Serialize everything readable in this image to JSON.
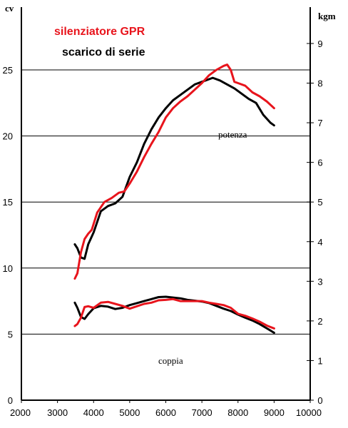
{
  "chart_data": {
    "type": "line",
    "title": "",
    "x": {
      "range": [
        2000,
        10000
      ],
      "ticks": [
        "2000",
        "3000",
        "4000",
        "5000",
        "6000",
        "7000",
        "8000",
        "9000",
        "10000"
      ]
    },
    "y_left": {
      "unit": "cv",
      "range": [
        0,
        30
      ],
      "ticks": [
        "0",
        "5",
        "10",
        "15",
        "20",
        "25"
      ]
    },
    "y_right": {
      "unit": "kgm",
      "range": [
        0,
        10
      ],
      "ticks": [
        "0",
        "1",
        "2",
        "3",
        "4",
        "5",
        "6",
        "7",
        "8",
        "9"
      ]
    },
    "legend": {
      "placement": "top-left",
      "entries": [
        {
          "label": "silenziatore GPR",
          "color": "#e8141c"
        },
        {
          "label": "scarico di serie",
          "color": "#000000"
        }
      ]
    },
    "annotations": {
      "power": "potenza",
      "torque": "coppia"
    },
    "grid": "horizontal at left-axis ticks",
    "series": [
      {
        "name": "silenziatore GPR",
        "quantity": "potenza",
        "axis": "left",
        "color": "#e8141c",
        "points": [
          [
            3480,
            9.2
          ],
          [
            3550,
            9.6
          ],
          [
            3650,
            11.2
          ],
          [
            3750,
            12.2
          ],
          [
            3850,
            12.6
          ],
          [
            3950,
            12.9
          ],
          [
            4100,
            14.2
          ],
          [
            4300,
            15.0
          ],
          [
            4500,
            15.3
          ],
          [
            4700,
            15.7
          ],
          [
            4850,
            15.8
          ],
          [
            5000,
            16.4
          ],
          [
            5200,
            17.3
          ],
          [
            5400,
            18.4
          ],
          [
            5600,
            19.4
          ],
          [
            5800,
            20.3
          ],
          [
            6000,
            21.4
          ],
          [
            6200,
            22.1
          ],
          [
            6400,
            22.6
          ],
          [
            6600,
            23.0
          ],
          [
            6800,
            23.5
          ],
          [
            7000,
            24.0
          ],
          [
            7200,
            24.6
          ],
          [
            7400,
            25.0
          ],
          [
            7600,
            25.3
          ],
          [
            7700,
            25.4
          ],
          [
            7800,
            25.0
          ],
          [
            7900,
            24.1
          ],
          [
            8000,
            24.0
          ],
          [
            8200,
            23.8
          ],
          [
            8400,
            23.3
          ],
          [
            8600,
            23.0
          ],
          [
            8800,
            22.6
          ],
          [
            9000,
            22.1
          ]
        ]
      },
      {
        "name": "scarico di serie",
        "quantity": "potenza",
        "axis": "left",
        "color": "#000000",
        "points": [
          [
            3480,
            11.8
          ],
          [
            3550,
            11.5
          ],
          [
            3650,
            10.8
          ],
          [
            3750,
            10.7
          ],
          [
            3850,
            11.8
          ],
          [
            4000,
            12.7
          ],
          [
            4200,
            14.3
          ],
          [
            4400,
            14.7
          ],
          [
            4600,
            14.9
          ],
          [
            4800,
            15.4
          ],
          [
            5000,
            16.9
          ],
          [
            5200,
            18.0
          ],
          [
            5400,
            19.4
          ],
          [
            5600,
            20.5
          ],
          [
            5800,
            21.4
          ],
          [
            6000,
            22.1
          ],
          [
            6200,
            22.7
          ],
          [
            6400,
            23.1
          ],
          [
            6600,
            23.5
          ],
          [
            6800,
            23.9
          ],
          [
            7000,
            24.1
          ],
          [
            7200,
            24.3
          ],
          [
            7300,
            24.4
          ],
          [
            7500,
            24.2
          ],
          [
            7700,
            23.9
          ],
          [
            7900,
            23.6
          ],
          [
            8100,
            23.2
          ],
          [
            8300,
            22.8
          ],
          [
            8500,
            22.5
          ],
          [
            8700,
            21.6
          ],
          [
            8900,
            21.0
          ],
          [
            9000,
            20.8
          ]
        ]
      },
      {
        "name": "silenziatore GPR",
        "quantity": "coppia",
        "axis": "right",
        "color": "#e8141c",
        "points": [
          [
            3480,
            1.87
          ],
          [
            3550,
            1.92
          ],
          [
            3650,
            2.08
          ],
          [
            3750,
            2.35
          ],
          [
            3850,
            2.37
          ],
          [
            4000,
            2.33
          ],
          [
            4200,
            2.46
          ],
          [
            4400,
            2.48
          ],
          [
            4600,
            2.43
          ],
          [
            4800,
            2.38
          ],
          [
            5000,
            2.31
          ],
          [
            5200,
            2.37
          ],
          [
            5400,
            2.43
          ],
          [
            5600,
            2.46
          ],
          [
            5800,
            2.52
          ],
          [
            6000,
            2.53
          ],
          [
            6200,
            2.55
          ],
          [
            6400,
            2.5
          ],
          [
            6600,
            2.5
          ],
          [
            6800,
            2.5
          ],
          [
            7000,
            2.5
          ],
          [
            7200,
            2.46
          ],
          [
            7400,
            2.43
          ],
          [
            7600,
            2.4
          ],
          [
            7800,
            2.33
          ],
          [
            8000,
            2.18
          ],
          [
            8200,
            2.13
          ],
          [
            8400,
            2.06
          ],
          [
            8600,
            1.98
          ],
          [
            8800,
            1.88
          ],
          [
            9000,
            1.81
          ]
        ]
      },
      {
        "name": "scarico di serie",
        "quantity": "coppia",
        "axis": "right",
        "color": "#000000",
        "points": [
          [
            3480,
            2.46
          ],
          [
            3550,
            2.33
          ],
          [
            3650,
            2.1
          ],
          [
            3750,
            2.05
          ],
          [
            3850,
            2.17
          ],
          [
            4000,
            2.32
          ],
          [
            4200,
            2.38
          ],
          [
            4400,
            2.36
          ],
          [
            4600,
            2.3
          ],
          [
            4800,
            2.33
          ],
          [
            5000,
            2.4
          ],
          [
            5200,
            2.45
          ],
          [
            5400,
            2.5
          ],
          [
            5600,
            2.55
          ],
          [
            5800,
            2.6
          ],
          [
            6000,
            2.61
          ],
          [
            6200,
            2.59
          ],
          [
            6400,
            2.57
          ],
          [
            6600,
            2.53
          ],
          [
            6800,
            2.51
          ],
          [
            7000,
            2.49
          ],
          [
            7200,
            2.45
          ],
          [
            7400,
            2.38
          ],
          [
            7600,
            2.31
          ],
          [
            7800,
            2.25
          ],
          [
            8000,
            2.16
          ],
          [
            8200,
            2.08
          ],
          [
            8400,
            2.01
          ],
          [
            8600,
            1.92
          ],
          [
            8800,
            1.81
          ],
          [
            9000,
            1.7
          ]
        ]
      }
    ]
  }
}
